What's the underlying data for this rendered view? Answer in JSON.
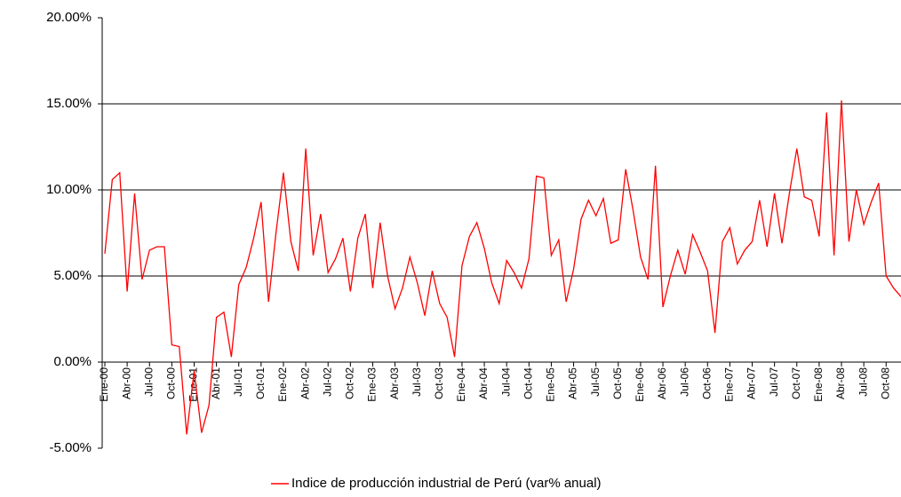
{
  "chart_data": {
    "type": "line",
    "categories": [
      "Ene-00",
      null,
      null,
      "Abr-00",
      null,
      null,
      "Jul-00",
      null,
      null,
      "Oct-00",
      null,
      null,
      "Ene-01",
      null,
      null,
      "Abr-01",
      null,
      null,
      "Jul-01",
      null,
      null,
      "Oct-01",
      null,
      null,
      "Ene-02",
      null,
      null,
      "Abr-02",
      null,
      null,
      "Jul-02",
      null,
      null,
      "Oct-02",
      null,
      null,
      "Ene-03",
      null,
      null,
      "Abr-03",
      null,
      null,
      "Jul-03",
      null,
      null,
      "Oct-03",
      null,
      null,
      "Ene-04",
      null,
      null,
      "Abr-04",
      null,
      null,
      "Jul-04",
      null,
      null,
      "Oct-04",
      null,
      null,
      "Ene-05",
      null,
      null,
      "Abr-05",
      null,
      null,
      "Jul-05",
      null,
      null,
      "Oct-05",
      null,
      null,
      "Ene-06",
      null,
      null,
      "Abr-06",
      null,
      null,
      "Jul-06",
      null,
      null,
      "Oct-06",
      null,
      null,
      "Ene-07",
      null,
      null,
      "Abr-07",
      null,
      null,
      "Jul-07",
      null,
      null,
      "Oct-07",
      null,
      null,
      "Ene-08",
      null,
      null,
      "Abr-08",
      null,
      null,
      "Jul-08",
      null,
      null,
      "Oct-08",
      null,
      null
    ],
    "series": [
      {
        "name": "Indice de producción industrial de Perú (var% anual)",
        "color": "#ff0000",
        "values": [
          6.3,
          10.6,
          11.0,
          4.1,
          9.8,
          4.8,
          6.5,
          6.7,
          6.7,
          1.0,
          0.9,
          -4.2,
          -0.5,
          -4.1,
          -2.5,
          2.6,
          2.9,
          0.3,
          4.5,
          5.5,
          7.2,
          9.3,
          3.5,
          7.5,
          11.0,
          7.0,
          5.3,
          12.4,
          6.2,
          8.6,
          5.2,
          6.0,
          7.2,
          4.1,
          7.2,
          8.6,
          4.3,
          8.1,
          5.0,
          3.1,
          4.3,
          6.1,
          4.6,
          2.7,
          5.3,
          3.4,
          2.6,
          0.3,
          5.6,
          7.3,
          8.1,
          6.6,
          4.6,
          3.4,
          5.9,
          5.2,
          4.3,
          6.0,
          10.8,
          10.7,
          6.2,
          7.1,
          3.5,
          5.4,
          8.3,
          9.4,
          8.5,
          9.5,
          6.9,
          7.1,
          11.2,
          8.8,
          6.1,
          4.8,
          11.4,
          3.2,
          5.0,
          6.5,
          5.1,
          7.4,
          6.4,
          5.3,
          1.7,
          7.0,
          7.8,
          5.7,
          6.5,
          7.0,
          9.4,
          6.7,
          9.8,
          6.9,
          9.8,
          12.4,
          9.6,
          9.4,
          7.3,
          14.5,
          6.2,
          15.2,
          7.0,
          10.0,
          8.0,
          9.3,
          10.4,
          5.0,
          4.3,
          3.8
        ]
      }
    ],
    "ylim": [
      -5,
      20
    ],
    "yticks": [
      {
        "value": -5,
        "label": "-5.00%"
      },
      {
        "value": 0,
        "label": "0.00%"
      },
      {
        "value": 5,
        "label": "5.00%"
      },
      {
        "value": 10,
        "label": "10.00%"
      },
      {
        "value": 15,
        "label": "15.00%"
      },
      {
        "value": 20,
        "label": "20.00%"
      }
    ],
    "grid": true,
    "legend": "bottom"
  }
}
